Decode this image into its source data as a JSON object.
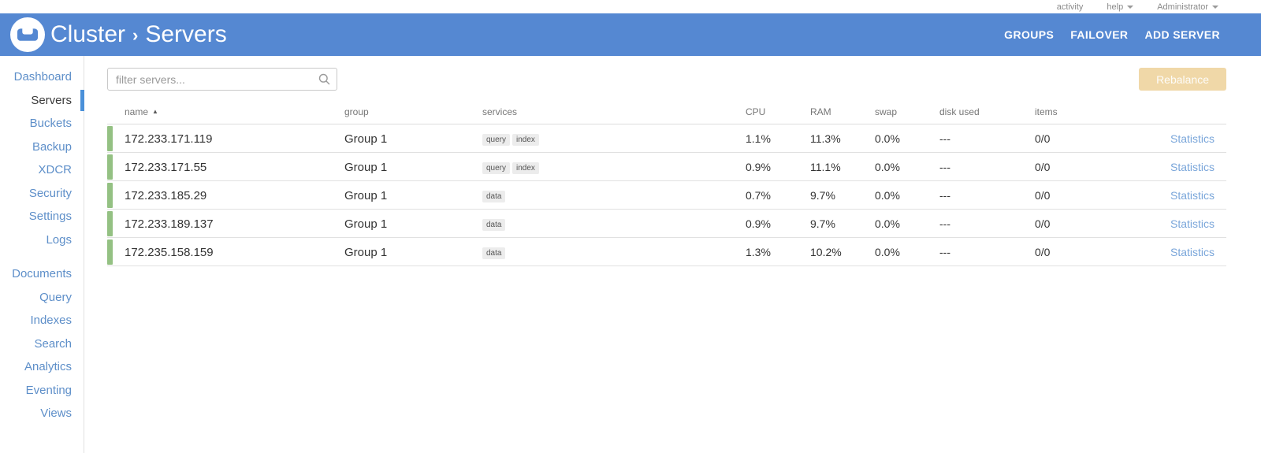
{
  "topbar": {
    "items": [
      {
        "label": "activity",
        "caret": false
      },
      {
        "label": "help",
        "caret": true
      },
      {
        "label": "Administrator",
        "caret": true
      }
    ]
  },
  "header": {
    "logo": "couchbase-logo",
    "breadcrumb": {
      "section": "Cluster",
      "separator": "›",
      "page": "Servers"
    },
    "actions": [
      "GROUPS",
      "FAILOVER",
      "ADD SERVER"
    ]
  },
  "sidebar": {
    "groups": [
      {
        "items": [
          {
            "label": "Dashboard",
            "active": false
          },
          {
            "label": "Servers",
            "active": true
          },
          {
            "label": "Buckets",
            "active": false
          },
          {
            "label": "Backup",
            "active": false
          },
          {
            "label": "XDCR",
            "active": false
          },
          {
            "label": "Security",
            "active": false
          },
          {
            "label": "Settings",
            "active": false
          },
          {
            "label": "Logs",
            "active": false
          }
        ]
      },
      {
        "items": [
          {
            "label": "Documents",
            "active": false
          },
          {
            "label": "Query",
            "active": false
          },
          {
            "label": "Indexes",
            "active": false
          },
          {
            "label": "Search",
            "active": false
          },
          {
            "label": "Analytics",
            "active": false
          },
          {
            "label": "Eventing",
            "active": false
          },
          {
            "label": "Views",
            "active": false
          }
        ]
      }
    ]
  },
  "main": {
    "filter": {
      "placeholder": "filter servers..."
    },
    "rebalance_label": "Rebalance",
    "table": {
      "columns": [
        {
          "label": "name",
          "sorted": "asc"
        },
        {
          "label": "group"
        },
        {
          "label": "services"
        },
        {
          "label": "CPU"
        },
        {
          "label": "RAM"
        },
        {
          "label": "swap"
        },
        {
          "label": "disk used"
        },
        {
          "label": "items"
        },
        {
          "label": ""
        }
      ],
      "rows": [
        {
          "name": "172.233.171.119",
          "group": "Group 1",
          "services": [
            "query",
            "index"
          ],
          "cpu": "1.1%",
          "ram": "11.3%",
          "swap": "0.0%",
          "disk_used": "---",
          "items": "0/0",
          "statistics": "Statistics"
        },
        {
          "name": "172.233.171.55",
          "group": "Group 1",
          "services": [
            "query",
            "index"
          ],
          "cpu": "0.9%",
          "ram": "11.1%",
          "swap": "0.0%",
          "disk_used": "---",
          "items": "0/0",
          "statistics": "Statistics"
        },
        {
          "name": "172.233.185.29",
          "group": "Group 1",
          "services": [
            "data"
          ],
          "cpu": "0.7%",
          "ram": "9.7%",
          "swap": "0.0%",
          "disk_used": "---",
          "items": "0/0",
          "statistics": "Statistics"
        },
        {
          "name": "172.233.189.137",
          "group": "Group 1",
          "services": [
            "data"
          ],
          "cpu": "0.9%",
          "ram": "9.7%",
          "swap": "0.0%",
          "disk_used": "---",
          "items": "0/0",
          "statistics": "Statistics"
        },
        {
          "name": "172.235.158.159",
          "group": "Group 1",
          "services": [
            "data"
          ],
          "cpu": "1.3%",
          "ram": "10.2%",
          "swap": "0.0%",
          "disk_used": "---",
          "items": "0/0",
          "statistics": "Statistics"
        }
      ]
    }
  },
  "colors": {
    "header_blue": "#5588d2",
    "sidebar_link_blue": "#5e8fc9",
    "active_marker_blue": "#4a90d9",
    "healthy_green": "#94c183",
    "rebalance_disabled": "#f0d8a8",
    "statistics_link_blue": "#7aa6da"
  }
}
